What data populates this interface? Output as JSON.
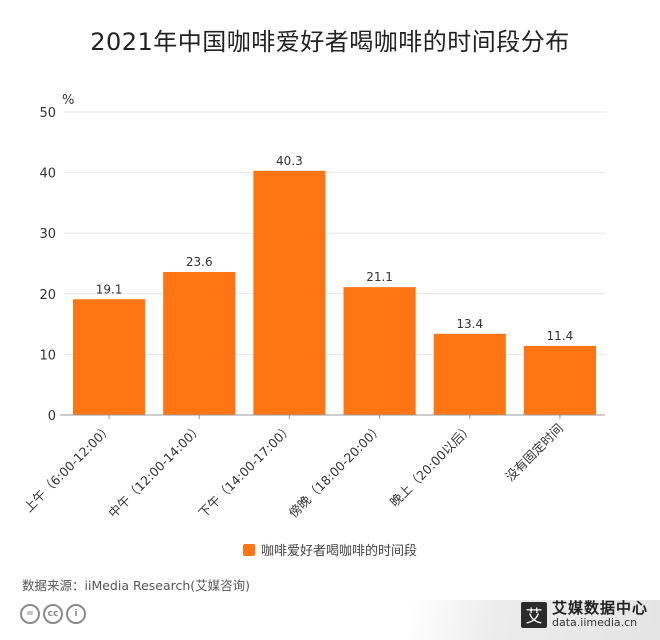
{
  "title": "2021年中国咖啡爱好者喝咖啡的时间段分布",
  "source": "数据来源：iiMedia Research(艾媒咨询)",
  "brand": {
    "logo_char": "艾",
    "name": "艾媒数据中心",
    "url": "data.iimedia.cn"
  },
  "license_icons": [
    "equals-icon",
    "cc-icon",
    "person-icon"
  ],
  "license_labels": [
    "=",
    "cc",
    "i"
  ],
  "colors": {
    "bar": "#FF7413",
    "grid": "#E5E5E5",
    "axis": "#999999"
  },
  "chart_data": {
    "type": "bar",
    "unit": "%",
    "categories": [
      "上午（6:00-12:00）",
      "中午（12:00-14:00）",
      "下午（14:00-17:00）",
      "傍晚（18:00-20:00）",
      "晚上（20:00以后）",
      "没有固定时间"
    ],
    "series": [
      {
        "name": "咖啡爱好者喝咖啡的时间段",
        "values": [
          19.1,
          23.6,
          40.3,
          21.1,
          13.4,
          11.4
        ]
      }
    ],
    "ylim": [
      0,
      50
    ],
    "yticks": [
      0,
      10,
      20,
      30,
      40,
      50
    ],
    "grid": true,
    "legend": "bottom"
  }
}
